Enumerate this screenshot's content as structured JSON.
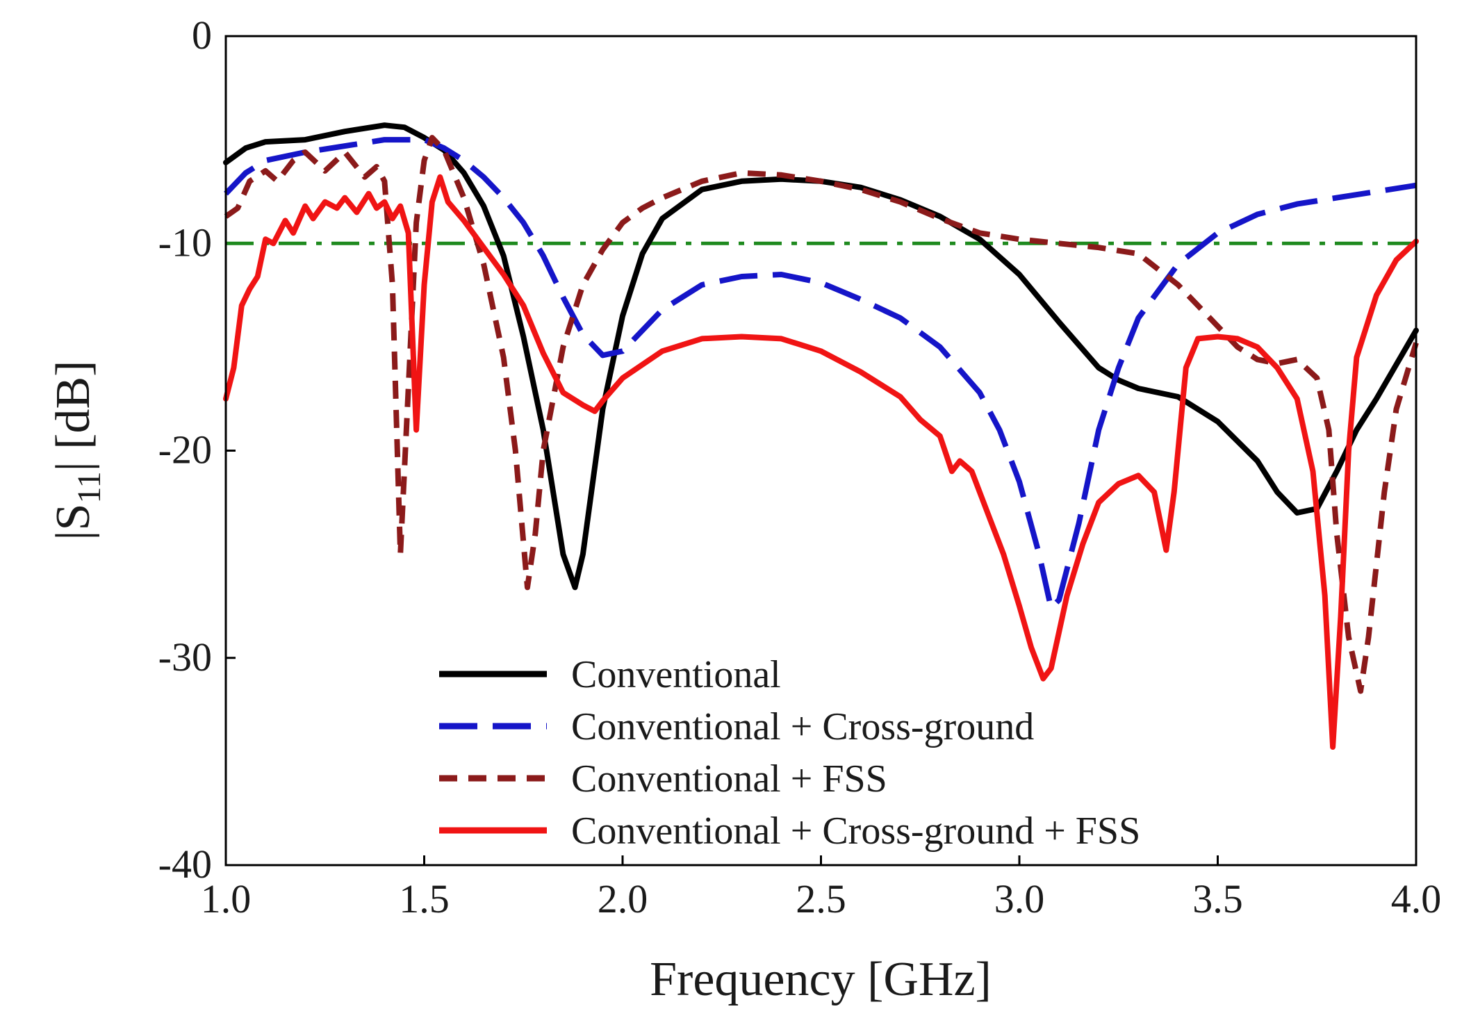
{
  "chart_data": {
    "type": "line",
    "xlabel": "Frequency [GHz]",
    "ylabel": "|S11| [dB]",
    "ylabel_parts": {
      "pre": "|S",
      "sub": "11",
      "post": "| [dB]"
    },
    "xlim": [
      1.0,
      4.0
    ],
    "ylim": [
      -40,
      0
    ],
    "xticks": [
      "1.0",
      "1.5",
      "2.0",
      "2.5",
      "3.0",
      "3.5",
      "4.0"
    ],
    "yticks": [
      "0",
      "-10",
      "-20",
      "-30",
      "-40"
    ],
    "grid": false,
    "legend_position": "bottom-center",
    "reference_line": {
      "y": -10,
      "color": "#1f8a1f",
      "style": "dash-dot"
    },
    "series": [
      {
        "name": "Conventional",
        "color": "#000000",
        "style": "solid",
        "points": [
          [
            1.0,
            -6.1
          ],
          [
            1.05,
            -5.4
          ],
          [
            1.1,
            -5.1
          ],
          [
            1.2,
            -5.0
          ],
          [
            1.3,
            -4.6
          ],
          [
            1.4,
            -4.3
          ],
          [
            1.45,
            -4.4
          ],
          [
            1.5,
            -4.9
          ],
          [
            1.55,
            -5.5
          ],
          [
            1.6,
            -6.6
          ],
          [
            1.65,
            -8.2
          ],
          [
            1.7,
            -10.6
          ],
          [
            1.75,
            -14.5
          ],
          [
            1.8,
            -19.0
          ],
          [
            1.85,
            -25.0
          ],
          [
            1.88,
            -26.6
          ],
          [
            1.9,
            -25.0
          ],
          [
            1.95,
            -18.0
          ],
          [
            2.0,
            -13.5
          ],
          [
            2.05,
            -10.5
          ],
          [
            2.1,
            -8.8
          ],
          [
            2.2,
            -7.4
          ],
          [
            2.3,
            -7.0
          ],
          [
            2.4,
            -6.9
          ],
          [
            2.5,
            -7.0
          ],
          [
            2.6,
            -7.3
          ],
          [
            2.7,
            -7.9
          ],
          [
            2.8,
            -8.7
          ],
          [
            2.9,
            -9.8
          ],
          [
            3.0,
            -11.5
          ],
          [
            3.1,
            -13.8
          ],
          [
            3.2,
            -16.0
          ],
          [
            3.25,
            -16.6
          ],
          [
            3.3,
            -17.0
          ],
          [
            3.4,
            -17.4
          ],
          [
            3.5,
            -18.6
          ],
          [
            3.6,
            -20.5
          ],
          [
            3.65,
            -22.0
          ],
          [
            3.7,
            -23.0
          ],
          [
            3.75,
            -22.8
          ],
          [
            3.8,
            -21.0
          ],
          [
            3.85,
            -19.0
          ],
          [
            3.9,
            -17.5
          ],
          [
            4.0,
            -14.2
          ]
        ]
      },
      {
        "name": "Conventional + Cross-ground",
        "color": "#1515c8",
        "style": "dashed",
        "points": [
          [
            1.0,
            -7.6
          ],
          [
            1.05,
            -6.6
          ],
          [
            1.1,
            -6.0
          ],
          [
            1.2,
            -5.6
          ],
          [
            1.3,
            -5.3
          ],
          [
            1.4,
            -5.0
          ],
          [
            1.5,
            -5.0
          ],
          [
            1.55,
            -5.4
          ],
          [
            1.6,
            -6.0
          ],
          [
            1.65,
            -6.8
          ],
          [
            1.7,
            -7.8
          ],
          [
            1.75,
            -9.0
          ],
          [
            1.8,
            -10.6
          ],
          [
            1.85,
            -12.6
          ],
          [
            1.9,
            -14.4
          ],
          [
            1.95,
            -15.4
          ],
          [
            2.0,
            -15.2
          ],
          [
            2.05,
            -14.2
          ],
          [
            2.1,
            -13.2
          ],
          [
            2.2,
            -12.0
          ],
          [
            2.3,
            -11.6
          ],
          [
            2.4,
            -11.5
          ],
          [
            2.5,
            -11.9
          ],
          [
            2.6,
            -12.7
          ],
          [
            2.7,
            -13.6
          ],
          [
            2.8,
            -15.0
          ],
          [
            2.9,
            -17.2
          ],
          [
            2.95,
            -19.0
          ],
          [
            3.0,
            -21.5
          ],
          [
            3.05,
            -25.0
          ],
          [
            3.08,
            -27.6
          ],
          [
            3.1,
            -27.2
          ],
          [
            3.15,
            -23.5
          ],
          [
            3.2,
            -19.0
          ],
          [
            3.25,
            -16.0
          ],
          [
            3.3,
            -13.6
          ],
          [
            3.4,
            -11.0
          ],
          [
            3.5,
            -9.5
          ],
          [
            3.6,
            -8.6
          ],
          [
            3.7,
            -8.1
          ],
          [
            3.8,
            -7.8
          ],
          [
            3.9,
            -7.5
          ],
          [
            4.0,
            -7.2
          ]
        ]
      },
      {
        "name": "Conventional + FSS",
        "color": "#8b1a1a",
        "style": "dashed",
        "points": [
          [
            1.0,
            -8.7
          ],
          [
            1.03,
            -8.3
          ],
          [
            1.06,
            -7.0
          ],
          [
            1.1,
            -6.5
          ],
          [
            1.13,
            -7.0
          ],
          [
            1.17,
            -6.0
          ],
          [
            1.2,
            -5.6
          ],
          [
            1.25,
            -6.5
          ],
          [
            1.3,
            -5.6
          ],
          [
            1.35,
            -6.8
          ],
          [
            1.38,
            -6.3
          ],
          [
            1.4,
            -7.0
          ],
          [
            1.42,
            -12.0
          ],
          [
            1.44,
            -25.0
          ],
          [
            1.46,
            -17.0
          ],
          [
            1.48,
            -9.0
          ],
          [
            1.5,
            -6.0
          ],
          [
            1.52,
            -4.9
          ],
          [
            1.55,
            -5.5
          ],
          [
            1.6,
            -7.8
          ],
          [
            1.65,
            -11.0
          ],
          [
            1.7,
            -15.5
          ],
          [
            1.73,
            -20.0
          ],
          [
            1.76,
            -26.6
          ],
          [
            1.78,
            -24.0
          ],
          [
            1.8,
            -20.0
          ],
          [
            1.85,
            -15.0
          ],
          [
            1.9,
            -12.0
          ],
          [
            1.95,
            -10.3
          ],
          [
            2.0,
            -9.0
          ],
          [
            2.05,
            -8.3
          ],
          [
            2.1,
            -7.8
          ],
          [
            2.2,
            -7.0
          ],
          [
            2.3,
            -6.6
          ],
          [
            2.4,
            -6.7
          ],
          [
            2.5,
            -7.0
          ],
          [
            2.6,
            -7.4
          ],
          [
            2.7,
            -8.0
          ],
          [
            2.8,
            -8.8
          ],
          [
            2.9,
            -9.5
          ],
          [
            3.0,
            -9.8
          ],
          [
            3.1,
            -10.0
          ],
          [
            3.2,
            -10.2
          ],
          [
            3.3,
            -10.5
          ],
          [
            3.4,
            -12.0
          ],
          [
            3.45,
            -13.0
          ],
          [
            3.5,
            -14.0
          ],
          [
            3.55,
            -15.0
          ],
          [
            3.6,
            -15.6
          ],
          [
            3.65,
            -15.8
          ],
          [
            3.7,
            -15.6
          ],
          [
            3.75,
            -16.5
          ],
          [
            3.78,
            -19.0
          ],
          [
            3.8,
            -24.0
          ],
          [
            3.83,
            -29.0
          ],
          [
            3.86,
            -31.6
          ],
          [
            3.88,
            -29.0
          ],
          [
            3.92,
            -22.0
          ],
          [
            3.95,
            -18.0
          ],
          [
            4.0,
            -14.8
          ]
        ]
      },
      {
        "name": "Conventional + Cross-ground + FSS",
        "color": "#f01414",
        "style": "solid",
        "points": [
          [
            1.0,
            -17.5
          ],
          [
            1.02,
            -16.0
          ],
          [
            1.04,
            -13.0
          ],
          [
            1.06,
            -12.2
          ],
          [
            1.08,
            -11.6
          ],
          [
            1.1,
            -9.8
          ],
          [
            1.12,
            -10.0
          ],
          [
            1.15,
            -8.9
          ],
          [
            1.17,
            -9.5
          ],
          [
            1.2,
            -8.2
          ],
          [
            1.22,
            -8.8
          ],
          [
            1.25,
            -8.0
          ],
          [
            1.28,
            -8.3
          ],
          [
            1.3,
            -7.8
          ],
          [
            1.33,
            -8.5
          ],
          [
            1.36,
            -7.6
          ],
          [
            1.38,
            -8.3
          ],
          [
            1.4,
            -8.0
          ],
          [
            1.42,
            -8.8
          ],
          [
            1.44,
            -8.2
          ],
          [
            1.46,
            -9.5
          ],
          [
            1.48,
            -19.0
          ],
          [
            1.5,
            -12.0
          ],
          [
            1.52,
            -8.0
          ],
          [
            1.54,
            -6.8
          ],
          [
            1.56,
            -8.0
          ],
          [
            1.6,
            -8.9
          ],
          [
            1.65,
            -10.2
          ],
          [
            1.7,
            -11.5
          ],
          [
            1.75,
            -13.0
          ],
          [
            1.8,
            -15.3
          ],
          [
            1.85,
            -17.2
          ],
          [
            1.9,
            -17.8
          ],
          [
            1.93,
            -18.1
          ],
          [
            1.95,
            -17.6
          ],
          [
            2.0,
            -16.5
          ],
          [
            2.1,
            -15.2
          ],
          [
            2.2,
            -14.6
          ],
          [
            2.3,
            -14.5
          ],
          [
            2.4,
            -14.6
          ],
          [
            2.5,
            -15.2
          ],
          [
            2.6,
            -16.2
          ],
          [
            2.7,
            -17.4
          ],
          [
            2.75,
            -18.5
          ],
          [
            2.8,
            -19.3
          ],
          [
            2.83,
            -21.0
          ],
          [
            2.85,
            -20.5
          ],
          [
            2.88,
            -21.0
          ],
          [
            2.92,
            -23.0
          ],
          [
            2.96,
            -25.0
          ],
          [
            3.0,
            -27.5
          ],
          [
            3.03,
            -29.5
          ],
          [
            3.06,
            -31.0
          ],
          [
            3.08,
            -30.5
          ],
          [
            3.12,
            -27.0
          ],
          [
            3.16,
            -24.5
          ],
          [
            3.2,
            -22.5
          ],
          [
            3.25,
            -21.6
          ],
          [
            3.3,
            -21.2
          ],
          [
            3.34,
            -22.0
          ],
          [
            3.37,
            -24.8
          ],
          [
            3.39,
            -22.0
          ],
          [
            3.42,
            -16.0
          ],
          [
            3.45,
            -14.6
          ],
          [
            3.5,
            -14.5
          ],
          [
            3.55,
            -14.6
          ],
          [
            3.6,
            -15.0
          ],
          [
            3.65,
            -16.0
          ],
          [
            3.7,
            -17.5
          ],
          [
            3.74,
            -21.0
          ],
          [
            3.77,
            -27.0
          ],
          [
            3.79,
            -34.3
          ],
          [
            3.81,
            -28.0
          ],
          [
            3.83,
            -20.0
          ],
          [
            3.85,
            -15.5
          ],
          [
            3.9,
            -12.5
          ],
          [
            3.95,
            -10.8
          ],
          [
            4.0,
            -9.9
          ]
        ]
      }
    ]
  }
}
